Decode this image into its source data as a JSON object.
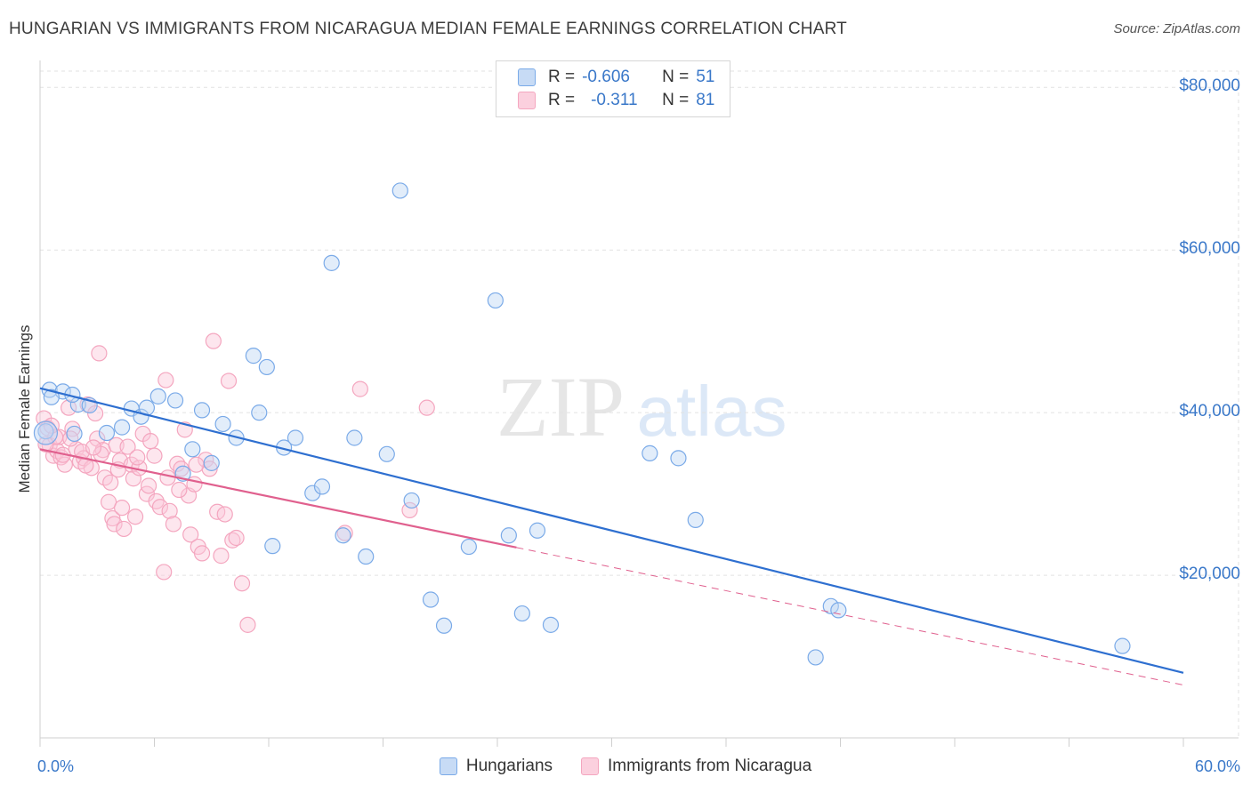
{
  "title": "HUNGARIAN VS IMMIGRANTS FROM NICARAGUA MEDIAN FEMALE EARNINGS CORRELATION CHART",
  "source": "Source: ZipAtlas.com",
  "watermark": {
    "zip": "ZIP",
    "atlas": "atlas"
  },
  "legend": {
    "r_label": "R =",
    "n_label": "N =",
    "hungarians": {
      "r": "-0.606",
      "n": "51"
    },
    "nicaragua": {
      "r": "-0.311",
      "n": "81"
    }
  },
  "chart_data": {
    "type": "scatter",
    "xlabel": "",
    "ylabel": "Median Female Earnings",
    "xlim": [
      0,
      60
    ],
    "ylim": [
      0,
      82000
    ],
    "x_tick_labels": [
      "0.0%",
      "60.0%"
    ],
    "y_ticks": [
      {
        "value": 20000,
        "label": "$20,000"
      },
      {
        "value": 40000,
        "label": "$40,000"
      },
      {
        "value": 60000,
        "label": "$60,000"
      },
      {
        "value": 80000,
        "label": "$80,000"
      }
    ],
    "grid": true,
    "legend_position": "top-center",
    "series": [
      {
        "name": "Hungarians",
        "color": "#7aaae8",
        "line_color": "#2e6fd0",
        "trend": {
          "x0": 0,
          "y0": 43000,
          "x1": 60,
          "y1": 8000,
          "dashed_from": null
        },
        "points": [
          [
            0.5,
            42800
          ],
          [
            1.2,
            42600
          ],
          [
            2.0,
            41000
          ],
          [
            3.5,
            37500
          ],
          [
            4.3,
            38200
          ],
          [
            4.8,
            40500
          ],
          [
            5.3,
            39500
          ],
          [
            5.6,
            40600
          ],
          [
            6.2,
            42000
          ],
          [
            7.1,
            41500
          ],
          [
            7.5,
            32500
          ],
          [
            8.0,
            35500
          ],
          [
            8.5,
            40300
          ],
          [
            9.0,
            33800
          ],
          [
            9.6,
            38600
          ],
          [
            10.3,
            36900
          ],
          [
            11.2,
            47000
          ],
          [
            11.5,
            40000
          ],
          [
            11.9,
            45600
          ],
          [
            12.2,
            23600
          ],
          [
            12.8,
            35700
          ],
          [
            13.4,
            36900
          ],
          [
            14.3,
            30100
          ],
          [
            14.8,
            30900
          ],
          [
            15.3,
            58400
          ],
          [
            15.9,
            24900
          ],
          [
            16.5,
            36900
          ],
          [
            17.1,
            22300
          ],
          [
            18.2,
            34900
          ],
          [
            18.9,
            67300
          ],
          [
            19.5,
            29200
          ],
          [
            20.5,
            17000
          ],
          [
            21.2,
            13800
          ],
          [
            22.5,
            23500
          ],
          [
            23.9,
            53800
          ],
          [
            24.6,
            24900
          ],
          [
            25.3,
            15300
          ],
          [
            26.1,
            25500
          ],
          [
            26.8,
            13900
          ],
          [
            32.0,
            35000
          ],
          [
            33.5,
            34400
          ],
          [
            34.4,
            26800
          ],
          [
            40.7,
            9900
          ],
          [
            41.5,
            16200
          ],
          [
            41.9,
            15700
          ],
          [
            56.8,
            11300
          ],
          [
            1.7,
            42200
          ],
          [
            0.6,
            41900
          ],
          [
            0.3,
            37700
          ],
          [
            1.8,
            37400
          ],
          [
            2.6,
            40900
          ]
        ]
      },
      {
        "name": "Immigrants from Nicaragua",
        "color": "#f4a6bf",
        "line_color": "#e0608e",
        "trend": {
          "x0": 0,
          "y0": 35500,
          "x1": 60,
          "y1": 6500,
          "dashed_from": 25
        },
        "points": [
          [
            0.2,
            39300
          ],
          [
            0.4,
            38100
          ],
          [
            0.5,
            36000
          ],
          [
            0.7,
            34700
          ],
          [
            0.9,
            35300
          ],
          [
            1.0,
            37000
          ],
          [
            1.1,
            34500
          ],
          [
            1.3,
            33600
          ],
          [
            1.5,
            40600
          ],
          [
            1.7,
            38000
          ],
          [
            1.9,
            35500
          ],
          [
            2.1,
            34000
          ],
          [
            2.3,
            34400
          ],
          [
            2.5,
            41000
          ],
          [
            2.7,
            33200
          ],
          [
            2.9,
            39900
          ],
          [
            3.0,
            36800
          ],
          [
            3.1,
            47300
          ],
          [
            3.3,
            35400
          ],
          [
            3.4,
            32000
          ],
          [
            3.6,
            29000
          ],
          [
            3.8,
            27000
          ],
          [
            3.9,
            26300
          ],
          [
            4.0,
            36000
          ],
          [
            4.2,
            34100
          ],
          [
            4.3,
            28300
          ],
          [
            4.4,
            25700
          ],
          [
            4.6,
            35800
          ],
          [
            4.8,
            33600
          ],
          [
            4.9,
            31900
          ],
          [
            5.0,
            27200
          ],
          [
            5.2,
            33200
          ],
          [
            5.4,
            37400
          ],
          [
            5.6,
            30000
          ],
          [
            5.8,
            36500
          ],
          [
            6.0,
            34700
          ],
          [
            6.1,
            29100
          ],
          [
            6.3,
            28400
          ],
          [
            6.5,
            20400
          ],
          [
            6.6,
            44000
          ],
          [
            6.8,
            27900
          ],
          [
            7.0,
            26300
          ],
          [
            7.2,
            33700
          ],
          [
            7.4,
            33100
          ],
          [
            7.6,
            37900
          ],
          [
            7.8,
            29800
          ],
          [
            7.9,
            25000
          ],
          [
            8.1,
            31200
          ],
          [
            8.3,
            23500
          ],
          [
            8.5,
            22700
          ],
          [
            8.7,
            34200
          ],
          [
            8.9,
            33100
          ],
          [
            9.1,
            48800
          ],
          [
            9.3,
            27800
          ],
          [
            9.5,
            22400
          ],
          [
            9.7,
            27500
          ],
          [
            9.9,
            43900
          ],
          [
            10.1,
            24300
          ],
          [
            10.3,
            24600
          ],
          [
            10.6,
            19000
          ],
          [
            10.9,
            13900
          ],
          [
            16.0,
            25200
          ],
          [
            16.8,
            42900
          ],
          [
            19.4,
            28000
          ],
          [
            20.3,
            40600
          ],
          [
            0.8,
            37000
          ],
          [
            1.6,
            36800
          ],
          [
            2.2,
            35200
          ],
          [
            2.4,
            33500
          ],
          [
            3.2,
            34900
          ],
          [
            4.1,
            33000
          ],
          [
            5.1,
            34500
          ],
          [
            5.7,
            31000
          ],
          [
            6.7,
            32000
          ],
          [
            7.3,
            30500
          ],
          [
            8.2,
            33600
          ],
          [
            0.3,
            36100
          ],
          [
            0.6,
            38400
          ],
          [
            1.2,
            34800
          ],
          [
            2.8,
            35700
          ],
          [
            3.7,
            31400
          ]
        ]
      }
    ]
  }
}
